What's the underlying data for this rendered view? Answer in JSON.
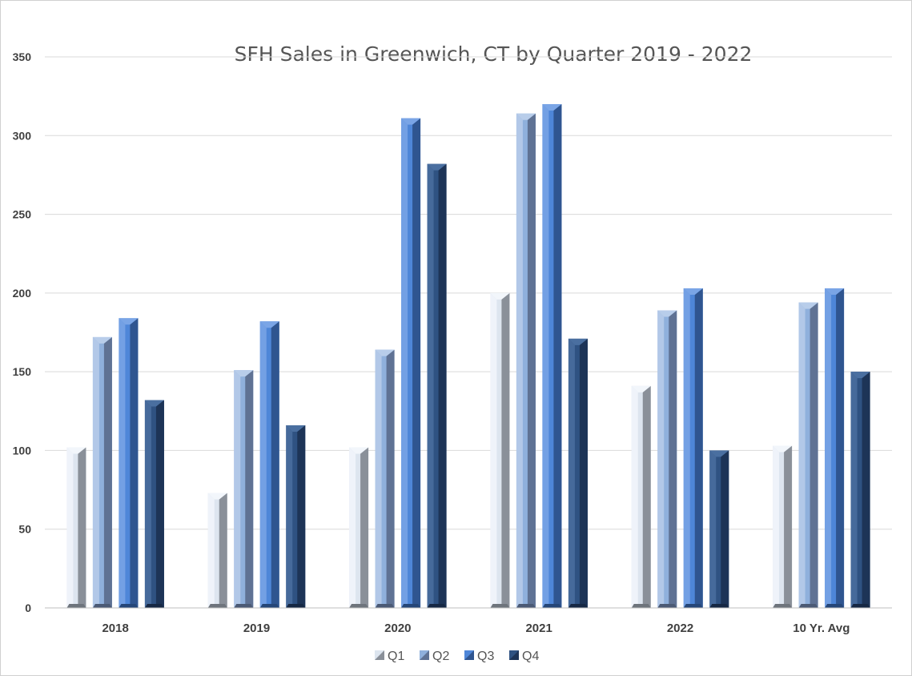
{
  "chart_data": {
    "type": "bar",
    "title": "SFH Sales in Greenwich, CT by Quarter 2019 - 2022",
    "xlabel": "",
    "ylabel": "",
    "categories": [
      "2018",
      "2019",
      "2020",
      "2021",
      "2022",
      "10 Yr. Avg"
    ],
    "series": [
      {
        "name": "Q1",
        "values": [
          102,
          73,
          102,
          200,
          141,
          103
        ]
      },
      {
        "name": "Q2",
        "values": [
          172,
          151,
          164,
          314,
          189,
          194
        ]
      },
      {
        "name": "Q3",
        "values": [
          184,
          182,
          311,
          320,
          203,
          203
        ]
      },
      {
        "name": "Q4",
        "values": [
          132,
          116,
          282,
          171,
          100,
          150
        ]
      }
    ],
    "ylim": [
      0,
      350
    ],
    "yticks": [
      0,
      50,
      100,
      150,
      200,
      250,
      300,
      350
    ],
    "grid": true,
    "legend": "bottom",
    "colors": {
      "Q1": {
        "front": "#dde5ef",
        "side": "#8a9099",
        "top": "#f2f6fb",
        "bottom": "#6e747c"
      },
      "Q2": {
        "front": "#8fb0dc",
        "side": "#5f7294",
        "top": "#b8cdea",
        "bottom": "#4b5a75"
      },
      "Q3": {
        "front": "#4e86d8",
        "side": "#2f5590",
        "top": "#7aa5e6",
        "bottom": "#254678"
      },
      "Q4": {
        "front": "#2f5282",
        "side": "#1d3457",
        "top": "#4a6fa0",
        "bottom": "#162844"
      },
      "grid": "#d9d9d9",
      "axis": "#bfbfbf"
    }
  }
}
